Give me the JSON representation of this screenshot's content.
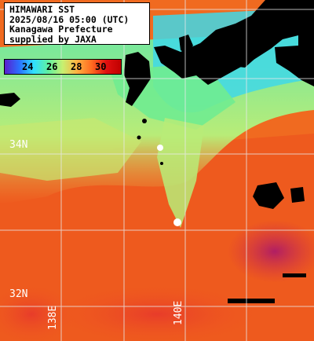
{
  "title": {
    "line1": "HIMAWARI SST",
    "line2": "2025/08/16 05:00 (UTC)",
    "line3": "Kanagawa Prefecture",
    "line4": "supplied by JAXA"
  },
  "colorbar": {
    "ticks": [
      "24",
      "26",
      "28",
      "30"
    ],
    "colors": [
      "#5a1ecd",
      "#2a70ff",
      "#30e0ff",
      "#60f0a0",
      "#c8f070",
      "#ffb040",
      "#ff6a20",
      "#e01010",
      "#c00000"
    ]
  },
  "grid_labels": {
    "lat_34": "34N",
    "lat_32": "32N",
    "lon_138": "138E",
    "lon_140": "140E"
  },
  "colors": {
    "land": "#000000",
    "grid": "#e8e8e8",
    "coast_cool": "#66ee99",
    "warm": "#f05a1e",
    "hot": "#c81e3c"
  }
}
